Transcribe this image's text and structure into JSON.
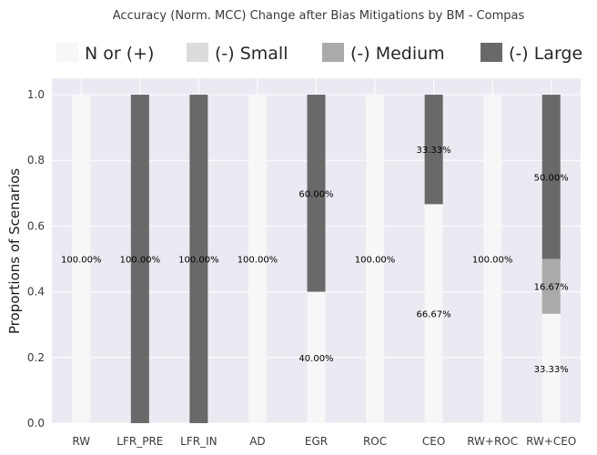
{
  "chart_data": {
    "type": "bar",
    "stacked": true,
    "title": "Accuracy (Norm. MCC) Change after Bias Mitigations by BM - Compas",
    "xlabel": "",
    "ylabel": "Proportions of Scenarios",
    "ylim": [
      0,
      1.05
    ],
    "yticks": [
      "0.0",
      "0.2",
      "0.4",
      "0.6",
      "0.8",
      "1.0"
    ],
    "grid": true,
    "legend_position": "top",
    "categories": [
      "RW",
      "LFR_PRE",
      "LFR_IN",
      "AD",
      "EGR",
      "ROC",
      "CEO",
      "RW+ROC",
      "RW+CEO"
    ],
    "series": [
      {
        "name": "N or (+)",
        "color": "#f7f7f7",
        "values": [
          1.0,
          0,
          0,
          1.0,
          0.4,
          1.0,
          0.6667,
          1.0,
          0.3333
        ],
        "labels": [
          "100.00%",
          "",
          "",
          "100.00%",
          "40.00%",
          "100.00%",
          "66.67%",
          "100.00%",
          "33.33%"
        ]
      },
      {
        "name": "(-) Small",
        "color": "#dcdcdc",
        "values": [
          0,
          0,
          0,
          0,
          0,
          0,
          0,
          0,
          0
        ],
        "labels": [
          "",
          "",
          "",
          "",
          "",
          "",
          "",
          "",
          ""
        ]
      },
      {
        "name": "(-) Medium",
        "color": "#aaaaaa",
        "values": [
          0,
          0,
          0,
          0,
          0,
          0,
          0,
          0,
          0.1667
        ],
        "labels": [
          "",
          "",
          "",
          "",
          "",
          "",
          "",
          "",
          "16.67%"
        ]
      },
      {
        "name": "(-) Large",
        "color": "#696969",
        "values": [
          0,
          1.0,
          1.0,
          0,
          0.6,
          0,
          0.3333,
          0,
          0.5
        ],
        "labels": [
          "",
          "100.00%",
          "100.00%",
          "",
          "60.00%",
          "",
          "33.33%",
          "",
          "50.00%"
        ]
      }
    ],
    "plot_background": "#eaeaf2",
    "grid_color": "#ffffff"
  }
}
